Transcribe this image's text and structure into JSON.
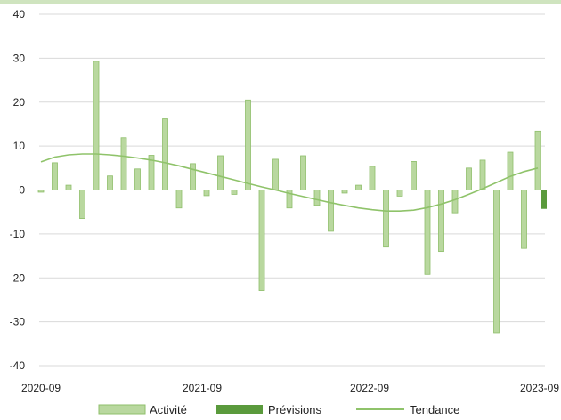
{
  "chart_data": {
    "type": "bar",
    "title": "",
    "xlabel": "",
    "ylabel": "",
    "ylim": [
      -40,
      40
    ],
    "yticks": [
      -40,
      -30,
      -20,
      -10,
      0,
      10,
      20,
      30,
      40
    ],
    "xtick_labels": [
      "2020-09",
      "2021-09",
      "2022-09",
      "2023-09"
    ],
    "categories": [
      "2020-09",
      "2020-10",
      "2020-11",
      "2020-12",
      "2021-01",
      "2021-02",
      "2021-03",
      "2021-04",
      "2021-05",
      "2021-06",
      "2021-07",
      "2021-08",
      "2021-09",
      "2021-10",
      "2021-11",
      "2021-12",
      "2022-01",
      "2022-02",
      "2022-03",
      "2022-04",
      "2022-05",
      "2022-06",
      "2022-07",
      "2022-08",
      "2022-09",
      "2022-10",
      "2022-11",
      "2022-12",
      "2023-01",
      "2023-02",
      "2023-03",
      "2023-04",
      "2023-05",
      "2023-06",
      "2023-07",
      "2023-08",
      "2023-09"
    ],
    "series": [
      {
        "name": "Activité",
        "color": "#b9d89f",
        "edge": "#8fbf6b",
        "values": [
          -0.5,
          6.2,
          1.1,
          -6.5,
          29.3,
          3.2,
          11.9,
          4.8,
          7.9,
          16.2,
          -4.1,
          6.0,
          -1.3,
          7.8,
          -1.0,
          20.5,
          -22.9,
          7.0,
          -4.1,
          7.8,
          -3.5,
          -9.4,
          -0.7,
          1.1,
          5.4,
          -13.0,
          -1.4,
          6.5,
          -19.2,
          -14.0,
          -5.2,
          5.0,
          6.8,
          -32.5,
          8.6,
          -13.3,
          13.4
        ]
      },
      {
        "name": "Prévisions",
        "color": "#5a9a3c",
        "points": [
          {
            "x": "2023-09",
            "y": -4.3
          }
        ]
      },
      {
        "name": "Tendance",
        "color": "#8fc36a",
        "type": "line",
        "values": [
          6.4,
          7.5,
          8.0,
          8.2,
          8.2,
          8.0,
          7.7,
          7.3,
          6.8,
          6.2,
          5.5,
          4.7,
          3.9,
          3.1,
          2.3,
          1.5,
          0.7,
          0.0,
          -0.8,
          -1.5,
          -2.2,
          -2.9,
          -3.5,
          -4.1,
          -4.5,
          -4.8,
          -4.8,
          -4.6,
          -4.0,
          -3.2,
          -2.2,
          -1.0,
          0.3,
          1.7,
          3.1,
          4.2,
          5.0
        ]
      }
    ],
    "legend": "bottom",
    "grid": true
  },
  "legend": {
    "activity": "Activité",
    "forecast": "Prévisions",
    "trend": "Tendance"
  }
}
